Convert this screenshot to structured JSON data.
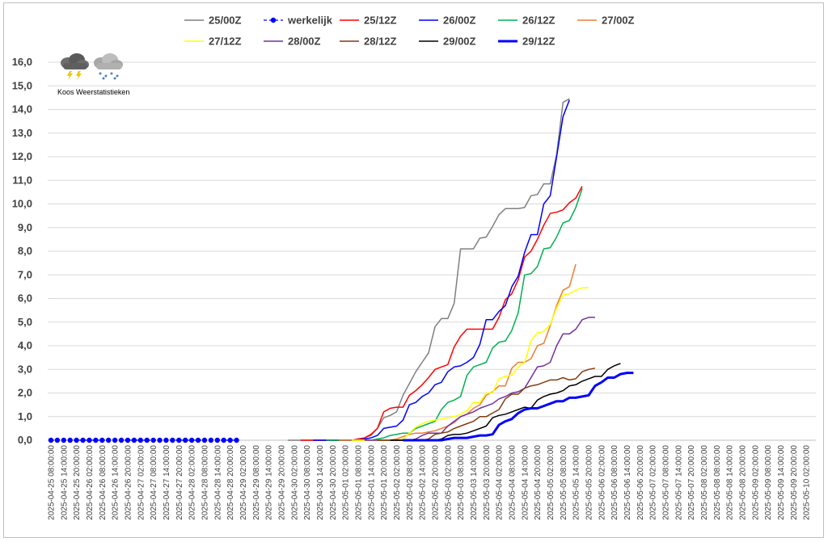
{
  "chart_data": {
    "type": "line",
    "title": "",
    "xlabel": "",
    "ylabel": "",
    "ylim": [
      0,
      16
    ],
    "y_ticks": [
      "0,0",
      "1,0",
      "2,0",
      "3,0",
      "4,0",
      "5,0",
      "6,0",
      "7,0",
      "8,0",
      "9,0",
      "10,0",
      "11,0",
      "12,0",
      "13,0",
      "14,0",
      "15,0",
      "16,0"
    ],
    "grid": "horizontal",
    "legend_position": "top",
    "x_labels": [
      "2025-04-25 08:00:00",
      "2025-04-25 14:00:00",
      "2025-04-25 20:00:00",
      "2025-04-26 02:00:00",
      "2025-04-26 08:00:00",
      "2025-04-26 14:00:00",
      "2025-04-26 20:00:00",
      "2025-04-27 02:00:00",
      "2025-04-27 08:00:00",
      "2025-04-27 14:00:00",
      "2025-04-27 20:00:00",
      "2025-04-28 02:00:00",
      "2025-04-28 08:00:00",
      "2025-04-28 14:00:00",
      "2025-04-28 20:00:00",
      "2025-04-29 02:00:00",
      "2025-04-29 08:00:00",
      "2025-04-29 14:00:00",
      "2025-04-29 20:00:00",
      "2025-04-30 02:00:00",
      "2025-04-30 08:00:00",
      "2025-04-30 14:00:00",
      "2025-04-30 20:00:00",
      "2025-05-01 02:00:00",
      "2025-05-01 08:00:00",
      "2025-05-01 14:00:00",
      "2025-05-01 20:00:00",
      "2025-05-02 02:00:00",
      "2025-05-02 08:00:00",
      "2025-05-02 14:00:00",
      "2025-05-02 20:00:00",
      "2025-05-03 02:00:00",
      "2025-05-03 08:00:00",
      "2025-05-03 14:00:00",
      "2025-05-03 20:00:00",
      "2025-05-04 02:00:00",
      "2025-05-04 08:00:00",
      "2025-05-04 14:00:00",
      "2025-05-04 20:00:00",
      "2025-05-05 02:00:00",
      "2025-05-05 08:00:00",
      "2025-05-05 14:00:00",
      "2025-05-05 20:00:00",
      "2025-05-06 02:00:00",
      "2025-05-06 08:00:00",
      "2025-05-06 14:00:00",
      "2025-05-06 20:00:00",
      "2025-05-07 02:00:00",
      "2025-05-07 08:00:00",
      "2025-05-07 14:00:00",
      "2025-05-07 20:00:00",
      "2025-05-08 02:00:00",
      "2025-05-08 08:00:00",
      "2025-05-08 14:00:00",
      "2025-05-08 20:00:00",
      "2025-05-09 02:00:00",
      "2025-05-09 08:00:00",
      "2025-05-09 14:00:00",
      "2025-05-09 20:00:00",
      "2025-05-10 02:00:00"
    ],
    "x_step_hours": 3,
    "series": [
      {
        "name": "25/00Z",
        "color": "#7f7f7f",
        "width": 1.5,
        "dashed": false,
        "markers": false,
        "start": 37,
        "values": [
          0,
          0,
          0,
          0,
          0,
          0,
          0,
          0,
          0,
          0,
          0,
          0.05,
          0.1,
          0.2,
          0.5,
          0.95,
          1.05,
          1.2,
          1.9,
          2.4,
          2.9,
          3.3,
          3.7,
          4.8,
          5.15,
          5.15,
          5.8,
          8.1,
          8.1,
          8.1,
          8.55,
          8.6,
          9.05,
          9.55,
          9.8,
          9.8,
          9.8,
          9.85,
          10.35,
          10.4,
          10.85,
          10.85,
          12.1,
          14.3,
          14.45
        ]
      },
      {
        "name": "werkelijk",
        "color": "#0000ff",
        "width": 1.2,
        "dashed": true,
        "markers": true,
        "start": 0,
        "values": [
          0,
          0,
          0,
          0,
          0,
          0,
          0,
          0,
          0,
          0,
          0,
          0,
          0,
          0,
          0,
          0,
          0,
          0,
          0,
          0,
          0,
          0,
          0,
          0,
          0,
          0,
          0,
          0,
          0,
          0
        ]
      },
      {
        "name": "25/12Z",
        "color": "#ff0000",
        "width": 1.5,
        "dashed": false,
        "markers": false,
        "start": 39,
        "values": [
          0,
          0,
          0,
          0,
          0,
          0,
          0,
          0,
          0,
          0.05,
          0.1,
          0.25,
          0.5,
          1.2,
          1.35,
          1.4,
          1.4,
          1.9,
          2.1,
          2.35,
          2.65,
          3.0,
          3.1,
          3.2,
          3.95,
          4.4,
          4.7,
          4.7,
          4.7,
          4.7,
          4.7,
          5.2,
          5.95,
          6.2,
          6.8,
          7.75,
          8.0,
          8.5,
          9.1,
          9.6,
          9.65,
          9.75,
          10.05,
          10.25,
          10.75
        ]
      },
      {
        "name": "26/00Z",
        "color": "#0000ff",
        "width": 1.5,
        "dashed": false,
        "markers": false,
        "start": 41,
        "values": [
          0,
          0,
          0,
          0,
          0,
          0,
          0,
          0,
          0.05,
          0.1,
          0.2,
          0.5,
          0.55,
          0.6,
          0.85,
          1.5,
          1.6,
          1.85,
          2.0,
          2.35,
          2.45,
          2.9,
          3.1,
          3.15,
          3.3,
          3.5,
          4.05,
          5.1,
          5.1,
          5.45,
          5.7,
          6.5,
          6.95,
          7.95,
          8.7,
          8.7,
          10.0,
          10.35,
          12.0,
          13.7,
          14.4
        ]
      },
      {
        "name": "26/12Z",
        "color": "#00b050",
        "width": 1.5,
        "dashed": false,
        "markers": false,
        "start": 43,
        "values": [
          0,
          0,
          0,
          0,
          0,
          0,
          0,
          0,
          0.05,
          0.1,
          0.2,
          0.25,
          0.3,
          0.3,
          0.5,
          0.6,
          0.7,
          0.8,
          1.3,
          1.6,
          1.7,
          1.85,
          2.75,
          3.1,
          3.2,
          3.3,
          3.9,
          4.15,
          4.2,
          4.65,
          5.4,
          7.0,
          7.05,
          7.35,
          8.1,
          8.15,
          8.6,
          9.2,
          9.3,
          9.85,
          10.65
        ]
      },
      {
        "name": "27/00Z",
        "color": "#ed7d31",
        "width": 1.5,
        "dashed": false,
        "markers": false,
        "start": 45,
        "values": [
          0,
          0,
          0,
          0,
          0,
          0,
          0,
          0,
          0,
          0.05,
          0.15,
          0.25,
          0.3,
          0.3,
          0.35,
          0.4,
          0.5,
          0.6,
          0.75,
          1.0,
          1.1,
          1.35,
          1.5,
          1.9,
          2.05,
          2.3,
          2.3,
          3.05,
          3.3,
          3.3,
          3.45,
          4.0,
          4.1,
          4.85,
          5.7,
          6.35,
          6.5,
          7.45
        ]
      },
      {
        "name": "27/12Z",
        "color": "#ffff00",
        "width": 1.5,
        "dashed": false,
        "markers": false,
        "start": 47,
        "values": [
          0,
          0,
          0,
          0,
          0,
          0,
          0,
          0,
          0.05,
          0.3,
          0.55,
          0.7,
          0.8,
          0.85,
          0.9,
          0.95,
          1.0,
          1.1,
          1.25,
          1.6,
          1.6,
          2.0,
          2.0,
          2.6,
          2.7,
          2.75,
          3.1,
          3.3,
          4.2,
          4.55,
          4.6,
          4.9,
          5.6,
          6.15,
          6.2,
          6.35,
          6.45,
          6.45
        ]
      },
      {
        "name": "28/00Z",
        "color": "#7030a0",
        "width": 1.5,
        "dashed": false,
        "markers": false,
        "start": 49,
        "values": [
          0,
          0,
          0,
          0,
          0,
          0,
          0,
          0,
          0.05,
          0.2,
          0.3,
          0.3,
          0.3,
          0.6,
          0.8,
          1.0,
          1.1,
          1.2,
          1.35,
          1.45,
          1.55,
          1.75,
          1.85,
          2.0,
          2.05,
          2.2,
          2.65,
          3.1,
          3.15,
          3.3,
          4.0,
          4.5,
          4.5,
          4.7,
          5.1,
          5.2,
          5.2
        ]
      },
      {
        "name": "28/12Z",
        "color": "#843c0c",
        "width": 1.5,
        "dashed": false,
        "markers": false,
        "start": 51,
        "values": [
          0,
          0,
          0,
          0,
          0,
          0,
          0,
          0,
          0.05,
          0.25,
          0.3,
          0.35,
          0.5,
          0.6,
          0.7,
          0.8,
          1.0,
          1.0,
          1.15,
          1.3,
          1.75,
          1.95,
          1.95,
          2.2,
          2.3,
          2.35,
          2.45,
          2.55,
          2.55,
          2.65,
          2.55,
          2.6,
          2.9,
          3.0,
          3.05
        ]
      },
      {
        "name": "29/00Z",
        "color": "#000000",
        "width": 1.5,
        "dashed": false,
        "markers": false,
        "start": 53,
        "values": [
          0,
          0,
          0,
          0,
          0,
          0,
          0,
          0,
          0.05,
          0.2,
          0.25,
          0.25,
          0.3,
          0.4,
          0.5,
          0.6,
          0.95,
          1.05,
          1.1,
          1.2,
          1.3,
          1.4,
          1.35,
          1.7,
          1.85,
          1.95,
          2.0,
          2.1,
          2.3,
          2.35,
          2.5,
          2.6,
          2.7,
          2.7,
          3.0,
          3.15,
          3.25
        ]
      },
      {
        "name": "29/12Z",
        "color": "#0000ff",
        "width": 3,
        "dashed": false,
        "markers": false,
        "start": 55,
        "values": [
          0,
          0,
          0,
          0,
          0,
          0,
          0,
          0.05,
          0.1,
          0.1,
          0.1,
          0.15,
          0.2,
          0.2,
          0.25,
          0.65,
          0.8,
          0.9,
          1.15,
          1.3,
          1.35,
          1.35,
          1.45,
          1.55,
          1.65,
          1.65,
          1.8,
          1.8,
          1.85,
          1.9,
          2.3,
          2.45,
          2.65,
          2.65,
          2.8,
          2.85,
          2.85
        ]
      }
    ]
  },
  "logo": {
    "text": "Koos Weerstatistieken",
    "icons": [
      "thunderstorm-cloud-icon",
      "snow-cloud-icon"
    ]
  }
}
